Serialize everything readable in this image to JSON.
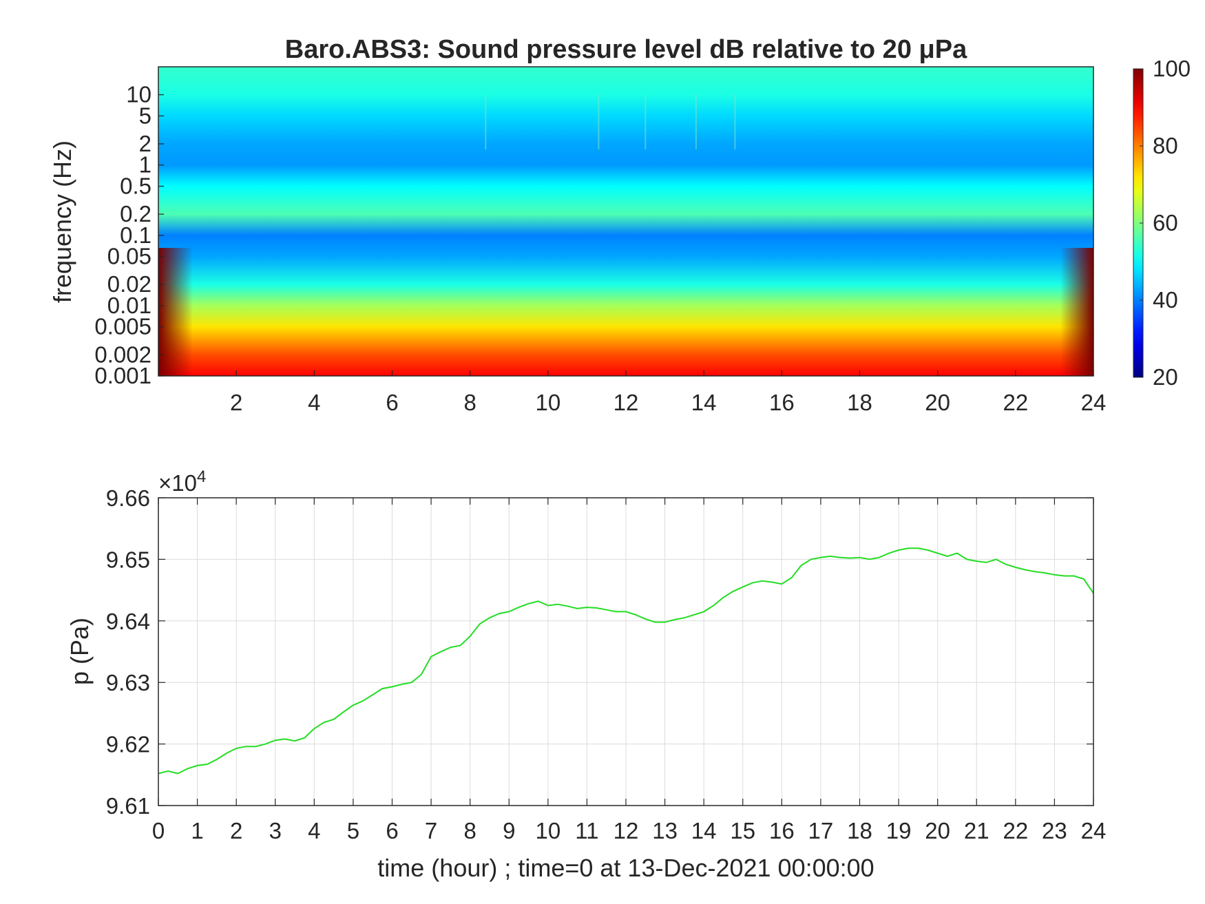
{
  "chart_data": [
    {
      "type": "heatmap",
      "title": "Baro.ABS3: Sound pressure level dB relative to 20 μPa",
      "xlabel": "",
      "ylabel": "frequency (Hz)",
      "x_ticks": [
        2,
        4,
        6,
        8,
        10,
        12,
        14,
        16,
        18,
        20,
        22,
        24
      ],
      "xlim": [
        0,
        24
      ],
      "y_scale": "log",
      "ylim": [
        0.001,
        25
      ],
      "y_ticks": [
        0.001,
        0.002,
        0.005,
        0.01,
        0.02,
        0.05,
        0.1,
        0.2,
        0.5,
        1,
        2,
        5,
        10
      ],
      "y_tick_labels": [
        "0.001",
        "0.002",
        "0.005",
        "0.01",
        "0.02",
        "0.05",
        "0.1",
        "0.2",
        "0.5",
        "1",
        "2",
        "5",
        "10"
      ],
      "colormap": "jet",
      "colorbar": {
        "range": [
          20,
          100
        ],
        "ticks": [
          20,
          40,
          60,
          80,
          100
        ],
        "tick_labels": [
          "20",
          "40",
          "60",
          "80",
          "100"
        ]
      },
      "level_profile_db": [
        {
          "frequency": 0.001,
          "level": 90
        },
        {
          "frequency": 0.002,
          "level": 84
        },
        {
          "frequency": 0.005,
          "level": 72
        },
        {
          "frequency": 0.01,
          "level": 63
        },
        {
          "frequency": 0.02,
          "level": 52
        },
        {
          "frequency": 0.05,
          "level": 43
        },
        {
          "frequency": 0.1,
          "level": 40
        },
        {
          "frequency": 0.2,
          "level": 56
        },
        {
          "frequency": 0.5,
          "level": 50
        },
        {
          "frequency": 1,
          "level": 42
        },
        {
          "frequency": 2,
          "level": 43
        },
        {
          "frequency": 5,
          "level": 47
        },
        {
          "frequency": 10,
          "level": 52
        },
        {
          "frequency": 25,
          "level": 54
        }
      ],
      "transient_lines_hours": [
        8.4,
        11.3,
        12.5,
        13.8,
        14.8
      ]
    },
    {
      "type": "line",
      "xlabel": "time (hour) ; time=0 at 13-Dec-2021 00:00:00",
      "ylabel": "p (Pa)",
      "y_exponent_label": "×10",
      "y_exponent_power": "4",
      "xlim": [
        0,
        24
      ],
      "ylim": [
        96100,
        96600
      ],
      "x_ticks": [
        0,
        1,
        2,
        3,
        4,
        5,
        6,
        7,
        8,
        9,
        10,
        11,
        12,
        13,
        14,
        15,
        16,
        17,
        18,
        19,
        20,
        21,
        22,
        23,
        24
      ],
      "y_ticks": [
        96100,
        96200,
        96300,
        96400,
        96500,
        96600
      ],
      "y_tick_labels": [
        "9.61",
        "9.62",
        "9.63",
        "9.64",
        "9.65",
        "9.66"
      ],
      "grid": true,
      "color": "#22dd22",
      "x": [
        0,
        0.25,
        0.5,
        0.75,
        1,
        1.25,
        1.5,
        1.75,
        2,
        2.25,
        2.5,
        2.75,
        3,
        3.25,
        3.5,
        3.75,
        4,
        4.25,
        4.5,
        4.75,
        5,
        5.25,
        5.5,
        5.75,
        6,
        6.25,
        6.5,
        6.75,
        7,
        7.25,
        7.5,
        7.75,
        8,
        8.25,
        8.5,
        8.75,
        9,
        9.25,
        9.5,
        9.75,
        10,
        10.25,
        10.5,
        10.75,
        11,
        11.25,
        11.5,
        11.75,
        12,
        12.25,
        12.5,
        12.75,
        13,
        13.25,
        13.5,
        13.75,
        14,
        14.25,
        14.5,
        14.75,
        15,
        15.25,
        15.5,
        15.75,
        16,
        16.25,
        16.5,
        16.75,
        17,
        17.25,
        17.5,
        17.75,
        18,
        18.25,
        18.5,
        18.75,
        19,
        19.25,
        19.5,
        19.75,
        20,
        20.25,
        20.5,
        20.75,
        21,
        21.25,
        21.5,
        21.75,
        22,
        22.25,
        22.5,
        22.75,
        23,
        23.25,
        23.5,
        23.75,
        24
      ],
      "values": [
        96152,
        96156,
        96152,
        96160,
        96165,
        96167,
        96175,
        96185,
        96193,
        96196,
        96196,
        96200,
        96206,
        96208,
        96205,
        96210,
        96225,
        96235,
        96240,
        96252,
        96263,
        96270,
        96280,
        96290,
        96293,
        96297,
        96300,
        96313,
        96342,
        96350,
        96357,
        96360,
        96375,
        96395,
        96405,
        96412,
        96415,
        96422,
        96428,
        96432,
        96425,
        96427,
        96424,
        96420,
        96422,
        96421,
        96418,
        96415,
        96415,
        96410,
        96403,
        96398,
        96398,
        96402,
        96405,
        96410,
        96415,
        96425,
        96438,
        96448,
        96455,
        96462,
        96465,
        96463,
        96460,
        96470,
        96490,
        96500,
        96503,
        96505,
        96503,
        96502,
        96503,
        96500,
        96503,
        96510,
        96515,
        96518,
        96518,
        96515,
        96510,
        96505,
        96510,
        96500,
        96497,
        96495,
        96500,
        96492,
        96487,
        96483,
        96480,
        96478,
        96475,
        96473,
        96473,
        96468,
        96445
      ]
    }
  ]
}
